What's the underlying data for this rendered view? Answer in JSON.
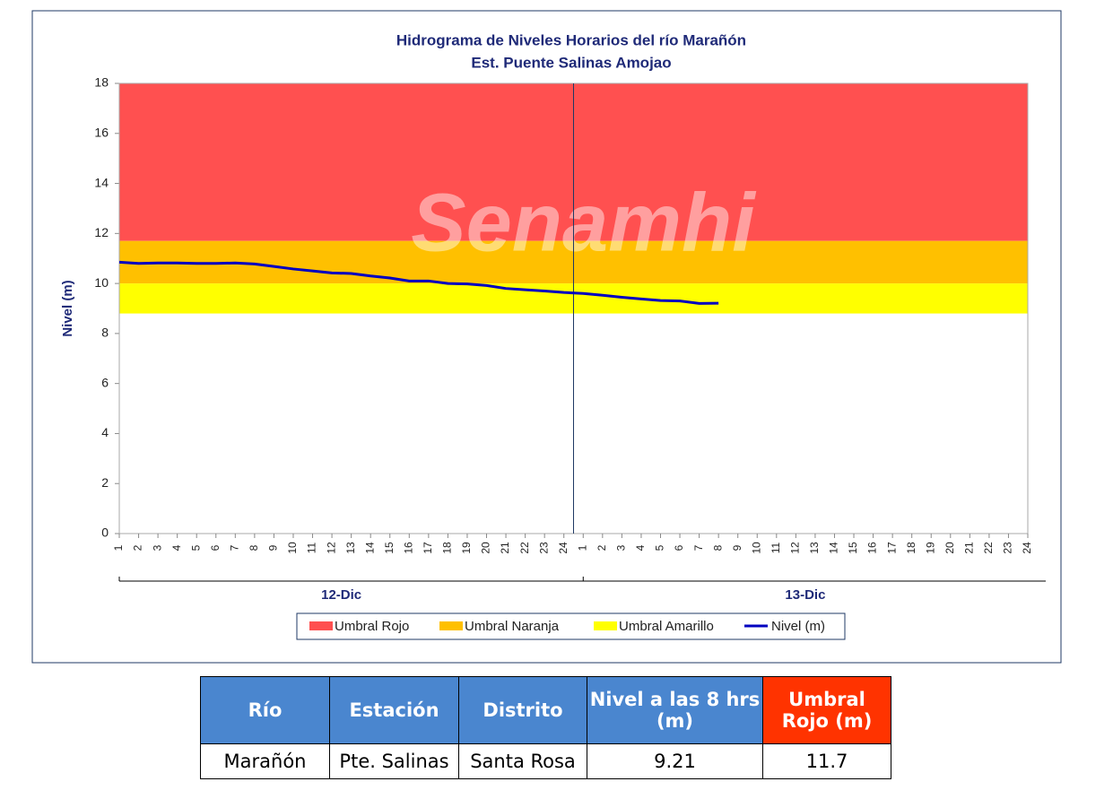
{
  "chart_data": {
    "type": "line",
    "title": "Hidrograma de Niveles Horarios del río Marañón",
    "subtitle": "Est. Puente Salinas Amojao",
    "watermark": "Senamhi",
    "y_label": "Nivel (m)",
    "categories": [
      "1",
      "2",
      "3",
      "4",
      "5",
      "6",
      "7",
      "8",
      "9",
      "10",
      "11",
      "12",
      "13",
      "14",
      "15",
      "16",
      "17",
      "18",
      "19",
      "20",
      "21",
      "22",
      "23",
      "24",
      "1",
      "2",
      "3",
      "4",
      "5",
      "6",
      "7",
      "8",
      "9",
      "10",
      "11",
      "12",
      "13",
      "14",
      "15",
      "16",
      "17",
      "18",
      "19",
      "20",
      "21",
      "22",
      "23",
      "24"
    ],
    "x_groups": [
      "12-Dic",
      "13-Dic"
    ],
    "ylim": [
      0,
      18
    ],
    "yticks": [
      0,
      2,
      4,
      6,
      8,
      10,
      12,
      14,
      16,
      18
    ],
    "thresholds": [
      {
        "name": "Umbral Rojo",
        "color": "#ff5050",
        "value": 11.7
      },
      {
        "name": "Umbral Naranja",
        "color": "#ffc000",
        "value": 10
      },
      {
        "name": "Umbral Amarillo",
        "color": "#ffff00",
        "value": 8.8
      }
    ],
    "series": [
      {
        "name": "Nivel (m)",
        "color": "#0000c0",
        "values": [
          10.85,
          10.8,
          10.82,
          10.82,
          10.8,
          10.8,
          10.82,
          10.78,
          10.68,
          10.58,
          10.5,
          10.42,
          10.4,
          10.3,
          10.22,
          10.1,
          10.1,
          10.0,
          9.98,
          9.92,
          9.8,
          9.75,
          9.7,
          9.64,
          9.6,
          9.53,
          9.45,
          9.38,
          9.32,
          9.3,
          9.2,
          9.21,
          null,
          null,
          null,
          null,
          null,
          null,
          null,
          null,
          null,
          null,
          null,
          null,
          null,
          null,
          null,
          null
        ]
      }
    ]
  },
  "table": {
    "header": [
      "Río",
      "Estación",
      "Distrito",
      "Nivel a las 8 hrs (m)",
      "Umbral Rojo (m)"
    ],
    "rows": [
      [
        "Marañón",
        "Pte. Salinas",
        "Santa Rosa",
        "9.21",
        "11.7"
      ]
    ]
  }
}
